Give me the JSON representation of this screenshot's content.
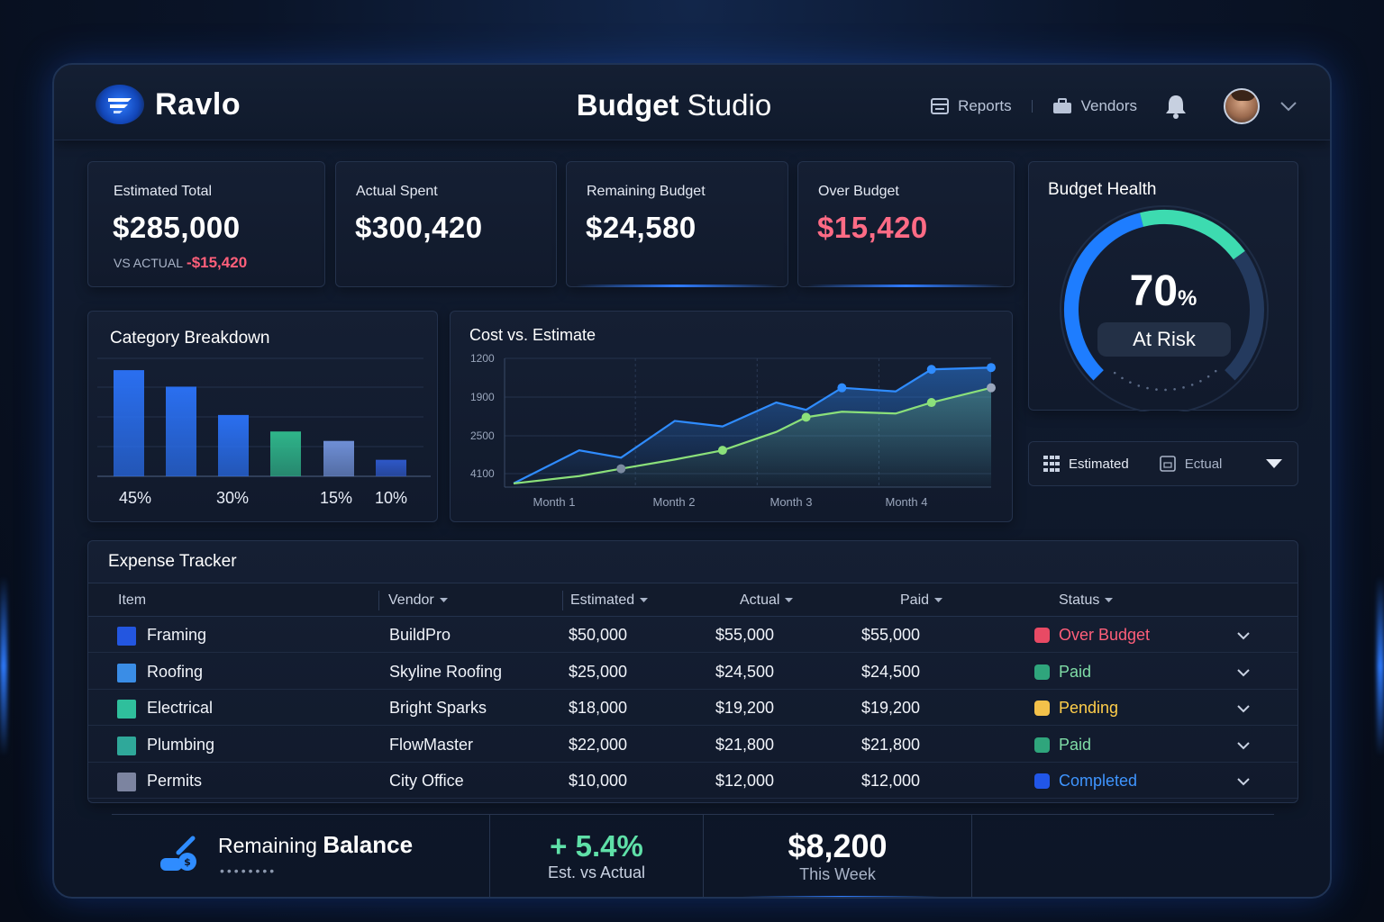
{
  "app": {
    "brand": "Ravlo",
    "title_bold": "Budget",
    "title_rest": " Studio"
  },
  "nav": {
    "reports": "Reports",
    "vendors": "Vendors"
  },
  "kpis": [
    {
      "label": "Estimated Total",
      "value": "$285,000",
      "sub_label": "VS ACTUAL",
      "sub_value": "-$15,420"
    },
    {
      "label": "Actual Spent",
      "value": "$300,420"
    },
    {
      "label": "Remaining Budget",
      "value": "$24,580"
    },
    {
      "label": "Over Budget",
      "value": "$15,420"
    }
  ],
  "budget_health": {
    "title": "Budget Health",
    "percent": "70",
    "percent_sign": "%",
    "status": "At Risk",
    "level": 0.7
  },
  "toggle": {
    "estimated": "Estimated",
    "actual": "Ectual"
  },
  "category_breakdown": {
    "title": "Category Breakdown",
    "labels": [
      "45%",
      "30%",
      "15%",
      "10%"
    ]
  },
  "cost_vs_estimate": {
    "title": "Cost vs. Estimate"
  },
  "chart_data": [
    {
      "type": "bar",
      "title": "Category Breakdown",
      "categories": [
        "",
        "",
        "",
        "",
        "",
        ""
      ],
      "values": [
        45,
        38,
        26,
        19,
        15,
        7
      ],
      "colors": [
        "#2a6ff0",
        "#2a6ff0",
        "#2a6ff0",
        "#2fb58a",
        "#6f8fd6",
        "#2e58c8"
      ],
      "tick_labels": [
        "45%",
        "30%",
        "15%",
        "10%"
      ],
      "grid": true
    },
    {
      "type": "line",
      "title": "Cost vs. Estimate",
      "categories": [
        "Month 1",
        "Month 2",
        "Month 3",
        "Month 4"
      ],
      "y_tick_labels": [
        "1200",
        "1900",
        "2500",
        "4100"
      ],
      "x": [
        0,
        0.55,
        0.9,
        1.35,
        1.75,
        2.2,
        2.45,
        2.75,
        3.2,
        3.5,
        4.0
      ],
      "series": [
        {
          "color": "#2f8cff",
          "values": [
            0.2,
            2.0,
            1.6,
            3.6,
            3.3,
            4.6,
            4.2,
            5.4,
            5.2,
            6.4,
            6.5
          ]
        },
        {
          "color": "#8be07a",
          "values": [
            0.2,
            0.6,
            1.0,
            1.5,
            2.0,
            3.0,
            3.8,
            4.1,
            4.0,
            4.6,
            5.4
          ]
        }
      ],
      "grid": true
    }
  ],
  "expense_tracker": {
    "title": "Expense Tracker",
    "columns": [
      "Item",
      "Vendor",
      "Estimated",
      "Actual",
      "Paid",
      "Status"
    ],
    "rows": [
      {
        "item": "Framing",
        "vendor": "BuildPro",
        "estimated": "$50,000",
        "actual": "$55,000",
        "paid": "$55,000",
        "status": "Over Budget",
        "swatch": "#2356e0",
        "status_color": "#ff5f7a",
        "dot": "#e84a64"
      },
      {
        "item": "Roofing",
        "vendor": "Skyline Roofing",
        "estimated": "$25,000",
        "actual": "$24,500",
        "paid": "$24,500",
        "status": "Paid",
        "swatch": "#3a8de6",
        "status_color": "#7fdca6",
        "dot": "#2fa57c"
      },
      {
        "item": "Electrical",
        "vendor": "Bright Sparks",
        "estimated": "$18,000",
        "actual": "$19,200",
        "paid": "$19,200",
        "status": "Pending",
        "swatch": "#2fbf9c",
        "status_color": "#ffce4a",
        "dot": "#f3c14a"
      },
      {
        "item": "Plumbing",
        "vendor": "FlowMaster",
        "estimated": "$22,000",
        "actual": "$21,800",
        "paid": "$21,800",
        "status": "Paid",
        "swatch": "#2fa89a",
        "status_color": "#7fdca6",
        "dot": "#2fa57c"
      },
      {
        "item": "Permits",
        "vendor": "City Office",
        "estimated": "$10,000",
        "actual": "$12,000",
        "paid": "$12,000",
        "status": "Completed",
        "swatch": "#7c84a0",
        "status_color": "#3f95ff",
        "dot": "#2156e8"
      }
    ]
  },
  "footer": {
    "balance_label": "Remaining",
    "balance_bold": "Balance",
    "balance_dots": "••••••••",
    "change": "+ 5.4%",
    "change_label": "Est. vs Actual",
    "week_value": "$8,200",
    "week_label": "This Week"
  }
}
